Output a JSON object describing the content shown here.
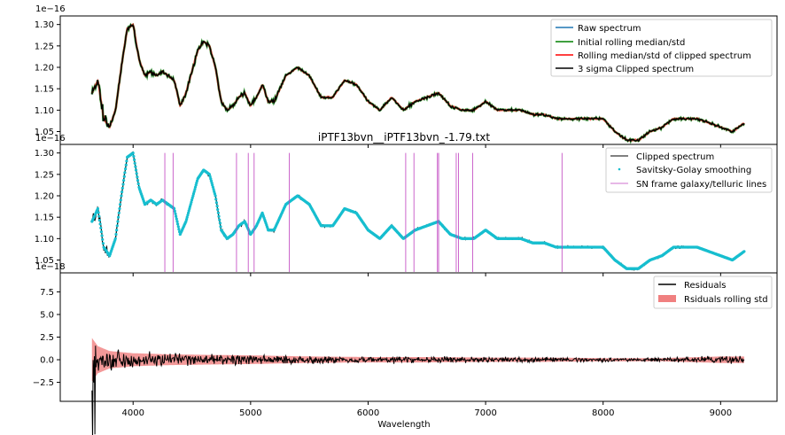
{
  "chart_data": [
    {
      "type": "line",
      "title": "",
      "xlabel": "",
      "ylabel": "",
      "scale_label": "1e−16",
      "xlim": [
        3380,
        9480
      ],
      "ylim": [
        1.02,
        1.32
      ],
      "yticks": [
        1.05,
        1.1,
        1.15,
        1.2,
        1.25,
        1.3
      ],
      "ytick_labels": [
        "1.05",
        "1.10",
        "1.15",
        "1.20",
        "1.25",
        "1.30"
      ],
      "legend_position": "top-right",
      "series": [
        {
          "name": "Raw spectrum",
          "color": "#1f77b4"
        },
        {
          "name": "Initial rolling median/std",
          "color": "#008000"
        },
        {
          "name": "Rolling median/std of clipped spectrum",
          "color": "#ff0000"
        },
        {
          "name": "3 sigma Clipped spectrum",
          "color": "#000000"
        }
      ],
      "x": [
        3650,
        3700,
        3750,
        3800,
        3850,
        3900,
        3950,
        4000,
        4050,
        4100,
        4150,
        4200,
        4250,
        4300,
        4350,
        4400,
        4450,
        4500,
        4550,
        4600,
        4650,
        4700,
        4750,
        4800,
        4850,
        4900,
        4950,
        5000,
        5050,
        5100,
        5150,
        5200,
        5300,
        5400,
        5500,
        5600,
        5700,
        5800,
        5900,
        6000,
        6100,
        6200,
        6300,
        6400,
        6500,
        6600,
        6700,
        6800,
        6900,
        7000,
        7100,
        7200,
        7300,
        7400,
        7500,
        7600,
        7700,
        7800,
        7900,
        8000,
        8100,
        8200,
        8300,
        8400,
        8500,
        8600,
        8700,
        8800,
        8900,
        9000,
        9100,
        9200
      ],
      "y": [
        1.14,
        1.17,
        1.08,
        1.06,
        1.1,
        1.2,
        1.29,
        1.3,
        1.22,
        1.18,
        1.19,
        1.18,
        1.19,
        1.18,
        1.17,
        1.11,
        1.14,
        1.19,
        1.24,
        1.26,
        1.25,
        1.2,
        1.12,
        1.1,
        1.11,
        1.13,
        1.14,
        1.11,
        1.13,
        1.16,
        1.12,
        1.12,
        1.18,
        1.2,
        1.18,
        1.13,
        1.13,
        1.17,
        1.16,
        1.12,
        1.1,
        1.13,
        1.1,
        1.12,
        1.13,
        1.14,
        1.11,
        1.1,
        1.1,
        1.12,
        1.1,
        1.1,
        1.1,
        1.09,
        1.09,
        1.08,
        1.08,
        1.08,
        1.08,
        1.08,
        1.05,
        1.03,
        1.03,
        1.05,
        1.06,
        1.08,
        1.08,
        1.08,
        1.07,
        1.06,
        1.05,
        1.07
      ]
    },
    {
      "type": "line",
      "title": "iPTF13bvn__iPTF13bvn_-1.79.txt",
      "xlabel": "",
      "ylabel": "",
      "scale_label": "1e−16",
      "xlim": [
        3380,
        9480
      ],
      "ylim": [
        1.02,
        1.32
      ],
      "yticks": [
        1.05,
        1.1,
        1.15,
        1.2,
        1.25,
        1.3
      ],
      "ytick_labels": [
        "1.05",
        "1.10",
        "1.15",
        "1.20",
        "1.25",
        "1.30"
      ],
      "legend_position": "top-right",
      "series": [
        {
          "name": "Clipped spectrum",
          "color": "#000000"
        },
        {
          "name": "Savitsky-Golay smoothing",
          "color": "#17becf"
        },
        {
          "name": "SN frame galaxy/telluric lines",
          "color": "#bf40bf"
        }
      ],
      "lines": [
        4270,
        4340,
        4880,
        4980,
        5030,
        5330,
        6320,
        6390,
        6590,
        6600,
        6750,
        6770,
        6890,
        7650
      ],
      "lines_range": [
        1.022,
        1.3
      ],
      "x": [
        3650,
        3700,
        3750,
        3800,
        3850,
        3900,
        3950,
        4000,
        4050,
        4100,
        4150,
        4200,
        4250,
        4300,
        4350,
        4400,
        4450,
        4500,
        4550,
        4600,
        4650,
        4700,
        4750,
        4800,
        4850,
        4900,
        4950,
        5000,
        5050,
        5100,
        5150,
        5200,
        5300,
        5400,
        5500,
        5600,
        5700,
        5800,
        5900,
        6000,
        6100,
        6200,
        6300,
        6400,
        6500,
        6600,
        6700,
        6800,
        6900,
        7000,
        7100,
        7200,
        7300,
        7400,
        7500,
        7600,
        7700,
        7800,
        7900,
        8000,
        8100,
        8200,
        8300,
        8400,
        8500,
        8600,
        8700,
        8800,
        8900,
        9000,
        9100,
        9200
      ],
      "y": [
        1.14,
        1.17,
        1.08,
        1.06,
        1.1,
        1.2,
        1.29,
        1.3,
        1.22,
        1.18,
        1.19,
        1.18,
        1.19,
        1.18,
        1.17,
        1.11,
        1.14,
        1.19,
        1.24,
        1.26,
        1.25,
        1.2,
        1.12,
        1.1,
        1.11,
        1.13,
        1.14,
        1.11,
        1.13,
        1.16,
        1.12,
        1.12,
        1.18,
        1.2,
        1.18,
        1.13,
        1.13,
        1.17,
        1.16,
        1.12,
        1.1,
        1.13,
        1.1,
        1.12,
        1.13,
        1.14,
        1.11,
        1.1,
        1.1,
        1.12,
        1.1,
        1.1,
        1.1,
        1.09,
        1.09,
        1.08,
        1.08,
        1.08,
        1.08,
        1.08,
        1.05,
        1.03,
        1.03,
        1.05,
        1.06,
        1.08,
        1.08,
        1.08,
        1.07,
        1.06,
        1.05,
        1.07
      ]
    },
    {
      "type": "line",
      "title": "",
      "xlabel": "Wavelength",
      "ylabel": "",
      "scale_label": "1e−18",
      "xlim": [
        3380,
        9480
      ],
      "ylim": [
        -4.6,
        9.6
      ],
      "yticks": [
        -2.5,
        0.0,
        2.5,
        5.0,
        7.5
      ],
      "ytick_labels": [
        "−2.5",
        "0.0",
        "2.5",
        "5.0",
        "7.5"
      ],
      "xticks": [
        4000,
        5000,
        6000,
        7000,
        8000,
        9000
      ],
      "xtick_labels": [
        "4000",
        "5000",
        "6000",
        "7000",
        "8000",
        "9000"
      ],
      "legend_position": "top-right",
      "series": [
        {
          "name": "Residuals",
          "color": "#000000"
        },
        {
          "name": "Rsiduals rolling std",
          "color": "#f08080"
        }
      ],
      "residual_envelope": {
        "x": [
          3650,
          3700,
          3800,
          4000,
          4300,
          4600,
          5000,
          5500,
          6000,
          6500,
          7000,
          7500,
          8000,
          8500,
          9000,
          9200
        ],
        "amplitude": [
          4.0,
          2.5,
          1.6,
          1.2,
          1.0,
          0.9,
          0.8,
          0.6,
          0.5,
          0.5,
          0.4,
          0.4,
          0.3,
          0.3,
          0.6,
          0.6
        ]
      }
    }
  ]
}
